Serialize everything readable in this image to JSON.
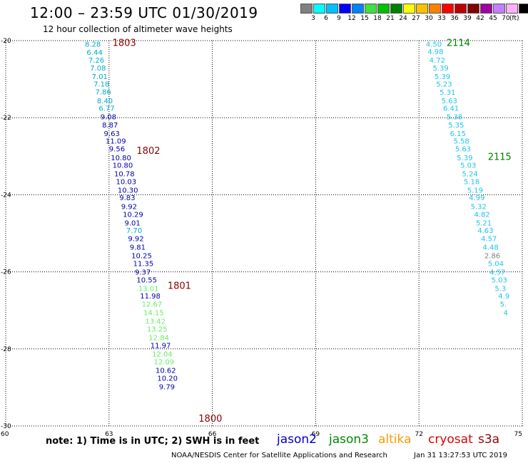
{
  "header": {
    "title": "12:00 – 23:59 UTC 01/30/2019",
    "subtitle": "12 hour collection of altimeter wave heights"
  },
  "scale": {
    "colors": [
      "#808080",
      "#00ffff",
      "#00c0ff",
      "#0000ff",
      "#0080ff",
      "#40e040",
      "#00c000",
      "#008000",
      "#ffff00",
      "#ffc000",
      "#ff8000",
      "#ff0000",
      "#c00000",
      "#800000",
      "#a000a0",
      "#c080ff",
      "#ffb0ff",
      "#000000"
    ],
    "labels": [
      "3",
      "6",
      "9",
      "12",
      "15",
      "18",
      "21",
      "24",
      "27",
      "30",
      "33",
      "36",
      "39",
      "42",
      "45",
      "70"
    ],
    "unit": "(ft)"
  },
  "axes": {
    "lat_labels": [
      "-20",
      "-22",
      "-24",
      "-26",
      "-28",
      "-30"
    ],
    "lon_labels": [
      "60",
      "63",
      "66",
      "69",
      "72",
      "75"
    ]
  },
  "chart_data": {
    "type": "scatter",
    "lat_range": [
      -30,
      -20
    ],
    "lon_range": [
      60,
      75
    ],
    "colors": {
      "cyan": "#1fc4e8",
      "teal": "#00aacc",
      "navy": "#0000a8",
      "lime": "#66ee66",
      "gray": "#808080",
      "maroon": "#8b0000",
      "green": "#008000"
    },
    "pass_labels": [
      {
        "text": "1803",
        "lat": -20.05,
        "lon": 63.1,
        "color": "maroon"
      },
      {
        "text": "1802",
        "lat": -22.85,
        "lon": 63.8,
        "color": "maroon"
      },
      {
        "text": "1801",
        "lat": -26.35,
        "lon": 64.7,
        "color": "maroon"
      },
      {
        "text": "1800",
        "lat": -29.8,
        "lon": 65.6,
        "color": "maroon"
      },
      {
        "text": "2114",
        "lat": -20.05,
        "lon": 72.8,
        "color": "green"
      },
      {
        "text": "2115",
        "lat": -23.0,
        "lon": 74.0,
        "color": "green"
      }
    ],
    "tracks": [
      {
        "points": [
          {
            "v": "8.28",
            "lat": -20.08,
            "lon": 62.3,
            "c": "teal"
          },
          {
            "v": "6.44",
            "lat": -20.3,
            "lon": 62.35,
            "c": "teal"
          },
          {
            "v": "7.26",
            "lat": -20.5,
            "lon": 62.4,
            "c": "teal"
          },
          {
            "v": "7.08",
            "lat": -20.7,
            "lon": 62.45,
            "c": "teal"
          },
          {
            "v": "7.01",
            "lat": -20.92,
            "lon": 62.5,
            "c": "teal"
          },
          {
            "v": "7.18",
            "lat": -21.12,
            "lon": 62.55,
            "c": "teal"
          },
          {
            "v": "7.86",
            "lat": -21.32,
            "lon": 62.6,
            "c": "teal"
          },
          {
            "v": "8.40",
            "lat": -21.55,
            "lon": 62.65,
            "c": "teal"
          },
          {
            "v": "6.77",
            "lat": -21.75,
            "lon": 62.7,
            "c": "teal"
          },
          {
            "v": "9.08",
            "lat": -21.97,
            "lon": 62.75,
            "c": "navy"
          },
          {
            "v": "8.87",
            "lat": -22.18,
            "lon": 62.8,
            "c": "navy"
          },
          {
            "v": "9.63",
            "lat": -22.4,
            "lon": 62.85,
            "c": "navy"
          },
          {
            "v": "11.09",
            "lat": -22.6,
            "lon": 62.9,
            "c": "navy"
          },
          {
            "v": "9.56",
            "lat": -22.8,
            "lon": 63.0,
            "c": "navy"
          },
          {
            "v": "10.80",
            "lat": -23.03,
            "lon": 63.05,
            "c": "navy"
          },
          {
            "v": "10.80",
            "lat": -23.23,
            "lon": 63.1,
            "c": "navy"
          },
          {
            "v": "10.78",
            "lat": -23.45,
            "lon": 63.15,
            "c": "navy"
          },
          {
            "v": "10.03",
            "lat": -23.65,
            "lon": 63.2,
            "c": "navy"
          },
          {
            "v": "10.30",
            "lat": -23.87,
            "lon": 63.25,
            "c": "navy"
          },
          {
            "v": "9.83",
            "lat": -24.07,
            "lon": 63.3,
            "c": "navy"
          },
          {
            "v": "9.92",
            "lat": -24.3,
            "lon": 63.35,
            "c": "navy"
          },
          {
            "v": "10.29",
            "lat": -24.5,
            "lon": 63.4,
            "c": "navy"
          },
          {
            "v": "9.01",
            "lat": -24.72,
            "lon": 63.45,
            "c": "navy"
          },
          {
            "v": "7.70",
            "lat": -24.92,
            "lon": 63.5,
            "c": "teal"
          },
          {
            "v": "9.92",
            "lat": -25.13,
            "lon": 63.55,
            "c": "navy"
          },
          {
            "v": "9.81",
            "lat": -25.35,
            "lon": 63.6,
            "c": "navy"
          },
          {
            "v": "10.25",
            "lat": -25.57,
            "lon": 63.65,
            "c": "navy"
          },
          {
            "v": "11.35",
            "lat": -25.78,
            "lon": 63.7,
            "c": "navy"
          },
          {
            "v": "9.37",
            "lat": -26.0,
            "lon": 63.75,
            "c": "navy"
          },
          {
            "v": "10.55",
            "lat": -26.2,
            "lon": 63.8,
            "c": "navy"
          },
          {
            "v": "13.01",
            "lat": -26.42,
            "lon": 63.85,
            "c": "lime"
          },
          {
            "v": "11.98",
            "lat": -26.62,
            "lon": 63.9,
            "c": "navy"
          },
          {
            "v": "12.67",
            "lat": -26.83,
            "lon": 63.95,
            "c": "lime"
          },
          {
            "v": "14.15",
            "lat": -27.05,
            "lon": 64.0,
            "c": "lime"
          },
          {
            "v": "13.42",
            "lat": -27.27,
            "lon": 64.05,
            "c": "lime"
          },
          {
            "v": "13.25",
            "lat": -27.48,
            "lon": 64.1,
            "c": "lime"
          },
          {
            "v": "12.84",
            "lat": -27.7,
            "lon": 64.15,
            "c": "lime"
          },
          {
            "v": "11.97",
            "lat": -27.9,
            "lon": 64.2,
            "c": "navy"
          },
          {
            "v": "12.04",
            "lat": -28.12,
            "lon": 64.25,
            "c": "lime"
          },
          {
            "v": "12.09",
            "lat": -28.33,
            "lon": 64.3,
            "c": "lime"
          },
          {
            "v": "10.62",
            "lat": -28.55,
            "lon": 64.35,
            "c": "navy"
          },
          {
            "v": "10.20",
            "lat": -28.75,
            "lon": 64.4,
            "c": "navy"
          },
          {
            "v": "9.79",
            "lat": -28.97,
            "lon": 64.45,
            "c": "navy"
          }
        ]
      },
      {
        "points": [
          {
            "v": "4.50",
            "lat": -20.08,
            "lon": 72.2,
            "c": "cyan"
          },
          {
            "v": "4.98",
            "lat": -20.28,
            "lon": 72.25,
            "c": "cyan"
          },
          {
            "v": "4.72",
            "lat": -20.5,
            "lon": 72.3,
            "c": "cyan"
          },
          {
            "v": "5.39",
            "lat": -20.7,
            "lon": 72.4,
            "c": "cyan"
          },
          {
            "v": "5.39",
            "lat": -20.92,
            "lon": 72.45,
            "c": "cyan"
          },
          {
            "v": "5.23",
            "lat": -21.12,
            "lon": 72.5,
            "c": "cyan"
          },
          {
            "v": "5.31",
            "lat": -21.33,
            "lon": 72.6,
            "c": "cyan"
          },
          {
            "v": "5.63",
            "lat": -21.55,
            "lon": 72.65,
            "c": "cyan"
          },
          {
            "v": "6.41",
            "lat": -21.75,
            "lon": 72.7,
            "c": "cyan"
          },
          {
            "v": "5.38",
            "lat": -21.97,
            "lon": 72.8,
            "c": "cyan"
          },
          {
            "v": "5.35",
            "lat": -22.18,
            "lon": 72.85,
            "c": "cyan"
          },
          {
            "v": "6.15",
            "lat": -22.4,
            "lon": 72.9,
            "c": "cyan"
          },
          {
            "v": "5.58",
            "lat": -22.6,
            "lon": 73.0,
            "c": "cyan"
          },
          {
            "v": "5.63",
            "lat": -22.8,
            "lon": 73.05,
            "c": "cyan"
          },
          {
            "v": "5.39",
            "lat": -23.03,
            "lon": 73.1,
            "c": "cyan"
          },
          {
            "v": "5.03",
            "lat": -23.23,
            "lon": 73.2,
            "c": "cyan"
          },
          {
            "v": "5.24",
            "lat": -23.45,
            "lon": 73.25,
            "c": "cyan"
          },
          {
            "v": "5.18",
            "lat": -23.65,
            "lon": 73.3,
            "c": "cyan"
          },
          {
            "v": "5.19",
            "lat": -23.87,
            "lon": 73.4,
            "c": "cyan"
          },
          {
            "v": "4.99",
            "lat": -24.07,
            "lon": 73.45,
            "c": "cyan"
          },
          {
            "v": "5.32",
            "lat": -24.3,
            "lon": 73.5,
            "c": "cyan"
          },
          {
            "v": "4.82",
            "lat": -24.5,
            "lon": 73.6,
            "c": "cyan"
          },
          {
            "v": "5.21",
            "lat": -24.72,
            "lon": 73.65,
            "c": "cyan"
          },
          {
            "v": "4.63",
            "lat": -24.92,
            "lon": 73.7,
            "c": "cyan"
          },
          {
            "v": "4.57",
            "lat": -25.13,
            "lon": 73.8,
            "c": "cyan"
          },
          {
            "v": "4.48",
            "lat": -25.35,
            "lon": 73.85,
            "c": "cyan"
          },
          {
            "v": "2.86",
            "lat": -25.57,
            "lon": 73.9,
            "c": "gray"
          },
          {
            "v": "5.04",
            "lat": -25.78,
            "lon": 74.0,
            "c": "cyan"
          },
          {
            "v": "4.57",
            "lat": -26.0,
            "lon": 74.05,
            "c": "cyan"
          },
          {
            "v": "5.03",
            "lat": -26.2,
            "lon": 74.1,
            "c": "cyan"
          },
          {
            "v": "5.3",
            "lat": -26.42,
            "lon": 74.2,
            "c": "cyan"
          },
          {
            "v": "4.9",
            "lat": -26.62,
            "lon": 74.3,
            "c": "cyan"
          },
          {
            "v": "5.",
            "lat": -26.83,
            "lon": 74.35,
            "c": "cyan"
          },
          {
            "v": "4",
            "lat": -27.05,
            "lon": 74.45,
            "c": "cyan"
          }
        ]
      }
    ]
  },
  "footer": {
    "note": "note: 1) Time is in UTC; 2) SWH is in feet",
    "legend": [
      {
        "text": "jason2",
        "color": "#0000cc"
      },
      {
        "text": "jason3",
        "color": "#008800"
      },
      {
        "text": "altika",
        "color": "#ff9900"
      },
      {
        "text": "cryosat",
        "color": "#dd0000"
      },
      {
        "text": "s3a",
        "color": "#990000"
      }
    ],
    "credit": "NOAA/NESDIS Center for Satellite Applications and Research",
    "stamp": "Jan 31 13:27:53 UTC 2019"
  }
}
